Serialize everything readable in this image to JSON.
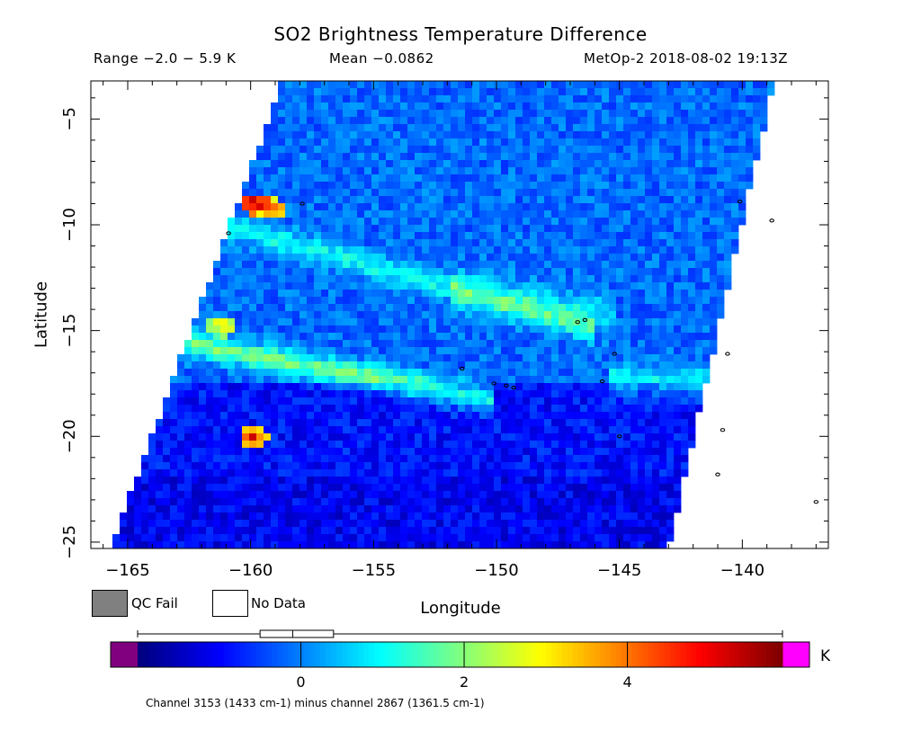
{
  "header": {
    "title": "SO2 Brightness Temperature Difference",
    "range": "Range −2.0 − 5.9 K",
    "mean": "Mean −0.0862",
    "satellite_time": "MetOp-2 2018-08-02 19:13Z"
  },
  "legend": {
    "qc_fail": "QC Fail",
    "no_data": "No Data"
  },
  "colorbar": {
    "unit": "K",
    "range": [
      -2.0,
      5.9
    ],
    "ticks": [
      0,
      2,
      4
    ],
    "tick_labels": [
      "0",
      "2",
      "4"
    ],
    "under_color": "#800080",
    "over_color": "#ff00ff",
    "box_whisker": {
      "min": -2.0,
      "q1": -0.5,
      "median": -0.1,
      "q3": 0.4,
      "max": 5.9
    }
  },
  "footnote": "Channel 3153 (1433 cm-1) minus channel 2867 (1361.5 cm-1)",
  "chart_data": {
    "type": "heatmap",
    "title": "SO2 Brightness Temperature Difference",
    "xlabel": "Longitude",
    "ylabel": "Latitude",
    "xlim": [
      -166.5,
      -136.5
    ],
    "ylim": [
      -25.3,
      -3.2
    ],
    "xticks": [
      -165,
      -160,
      -155,
      -150,
      -145,
      -140
    ],
    "xtick_labels": [
      "−165",
      "−160",
      "−155",
      "−150",
      "−145",
      "−140"
    ],
    "yticks": [
      -5,
      -10,
      -15,
      -20,
      -25
    ],
    "ytick_labels": [
      "−5",
      "−10",
      "−15",
      "−20",
      "−25"
    ],
    "grid": false,
    "swath_corners": [
      [
        -158.7,
        -3.2
      ],
      [
        -138.7,
        -3.2
      ],
      [
        -143.0,
        -25.3
      ],
      [
        -165.7,
        -25.3
      ]
    ],
    "value_range": [
      -2.0,
      5.9
    ],
    "mean": -0.0862,
    "background_value": -0.2,
    "features": [
      {
        "name": "band",
        "lat_center": -10.0,
        "slope": -0.33,
        "width": 0.6,
        "value": 1.2,
        "lon_from": -161.0,
        "lon_to": -146.0
      },
      {
        "name": "band",
        "lat_center": -15.5,
        "slope": -0.22,
        "width": 0.6,
        "value": 2.0,
        "lon_from": -163.0,
        "lon_to": -150.0
      },
      {
        "name": "band",
        "lat_center": -17.3,
        "slope": -0.05,
        "width": 0.7,
        "value": 1.1,
        "lon_from": -145.5,
        "lon_to": -141.0
      },
      {
        "name": "band",
        "lat_center": -13.0,
        "slope": -0.2,
        "width": 0.9,
        "value": 0.9,
        "lon_from": -152.0,
        "lon_to": -145.0
      },
      {
        "name": "hotspot",
        "lon": -159.8,
        "lat": -9.0,
        "value": 5.8
      },
      {
        "name": "hotspot",
        "lon": -159.1,
        "lat": -9.3,
        "value": 4.2
      },
      {
        "name": "hotspot",
        "lon": -159.9,
        "lat": -20.0,
        "value": 5.0
      },
      {
        "name": "hotspot",
        "lon": -161.2,
        "lat": -14.8,
        "value": 3.0
      }
    ],
    "islands": [
      [
        -157.9,
        -9.0
      ],
      [
        -160.9,
        -10.4
      ],
      [
        -146.7,
        -14.6
      ],
      [
        -146.4,
        -14.5
      ],
      [
        -145.7,
        -17.4
      ],
      [
        -149.6,
        -17.6
      ],
      [
        -149.3,
        -17.7
      ],
      [
        -150.1,
        -17.5
      ],
      [
        -151.4,
        -16.8
      ],
      [
        -145.0,
        -20.0
      ],
      [
        -140.1,
        -8.9
      ],
      [
        -138.8,
        -9.8
      ],
      [
        -140.6,
        -16.1
      ],
      [
        -140.8,
        -19.7
      ],
      [
        -141.0,
        -21.8
      ],
      [
        -137.0,
        -23.1
      ],
      [
        -145.2,
        -16.1
      ]
    ]
  }
}
